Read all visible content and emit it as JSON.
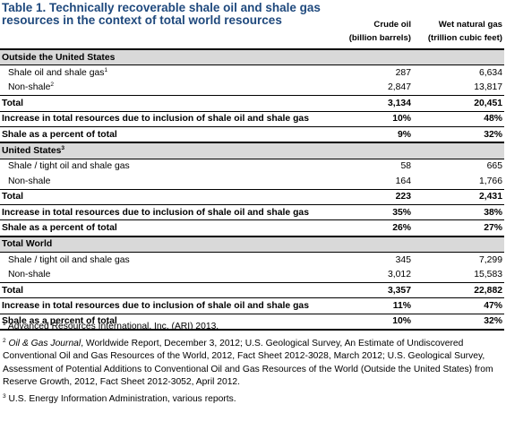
{
  "title": "Table 1. Technically recoverable shale oil and shale gas resources in the context of total world resources",
  "columns": {
    "crude_oil_line1": "Crude oil",
    "crude_oil_line2": "(billion barrels)",
    "gas_line1": "Wet natural gas",
    "gas_line2": "(trillion cubic feet)"
  },
  "sections": [
    {
      "header": "Outside the United States",
      "header_sup": "",
      "rows": [
        {
          "label": "Shale oil and shale gas",
          "sup": "1",
          "oil": "287",
          "gas": "6,634"
        },
        {
          "label": "Non-shale",
          "sup": "2",
          "oil": "2,847",
          "gas": "13,817"
        },
        {
          "label": "Total",
          "sup": "",
          "oil": "3,134",
          "gas": "20,451"
        },
        {
          "label": "Increase in total resources due to inclusion of shale oil and shale gas",
          "sup": "",
          "oil": "10%",
          "gas": "48%"
        },
        {
          "label": "Shale as a percent of total",
          "sup": "",
          "oil": "9%",
          "gas": "32%"
        }
      ]
    },
    {
      "header": "United States",
      "header_sup": "3",
      "rows": [
        {
          "label": "Shale / tight oil and shale gas",
          "sup": "",
          "oil": "58",
          "gas": "665"
        },
        {
          "label": "Non-shale",
          "sup": "",
          "oil": "164",
          "gas": "1,766"
        },
        {
          "label": "Total",
          "sup": "",
          "oil": "223",
          "gas": "2,431"
        },
        {
          "label": "Increase in total resources due to inclusion of shale oil and shale gas",
          "sup": "",
          "oil": "35%",
          "gas": "38%"
        },
        {
          "label": "Shale as a percent of total",
          "sup": "",
          "oil": "26%",
          "gas": "27%"
        }
      ]
    },
    {
      "header": "Total World",
      "header_sup": "",
      "rows": [
        {
          "label": "Shale / tight oil and shale gas",
          "sup": "",
          "oil": "345",
          "gas": "7,299"
        },
        {
          "label": "Non-shale",
          "sup": "",
          "oil": "3,012",
          "gas": "15,583"
        },
        {
          "label": "Total",
          "sup": "",
          "oil": "3,357",
          "gas": "22,882"
        },
        {
          "label": "Increase in total resources due to inclusion of shale oil and shale gas",
          "sup": "",
          "oil": "11%",
          "gas": "47%"
        },
        {
          "label": "Shale as a percent of total",
          "sup": "",
          "oil": "10%",
          "gas": "32%"
        }
      ]
    }
  ],
  "footnotes": {
    "n1_sup": "1",
    "n1": "Advanced Resources International, Inc. (ARI) 2013.",
    "n2_sup": "2",
    "n2_italic": "Oil & Gas Journal",
    "n2": ", Worldwide Report, December 3, 2012; U.S. Geological Survey, An Estimate of Undiscovered Conventional Oil and Gas Resources of the World, 2012, Fact Sheet 2012-3028, March 2012; U.S. Geological Survey, Assessment of Potential Additions to Conventional Oil and Gas Resources of the World (Outside the United States) from Reserve Growth, 2012, Fact Sheet 2012-3052, April 2012.",
    "n3_sup": "3",
    "n3": "U.S. Energy Information Administration, various reports."
  }
}
